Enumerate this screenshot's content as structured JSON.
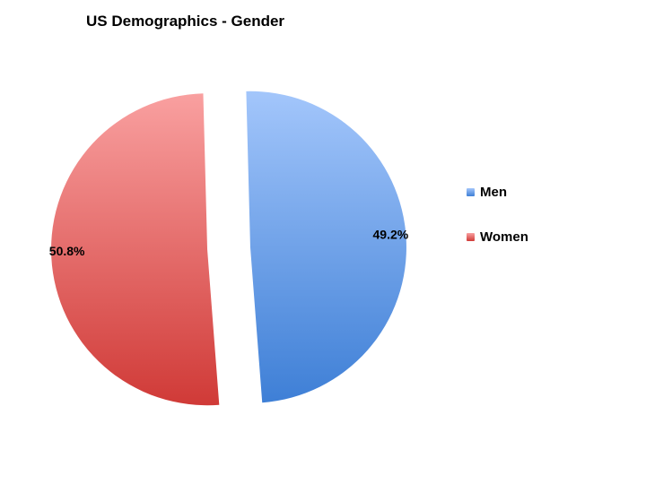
{
  "chart_data": {
    "type": "pie",
    "title": "US Demographics - Gender",
    "slices": [
      {
        "name": "Men",
        "value": 49.2,
        "label": "49.2%",
        "color_top": "#a3c6fb",
        "color_bottom": "#3e7fd6"
      },
      {
        "name": "Women",
        "value": 50.8,
        "label": "50.8%",
        "color_top": "#f9a0a0",
        "color_bottom": "#d03a37"
      }
    ],
    "legend": {
      "placement": "right"
    },
    "exploded": true
  }
}
